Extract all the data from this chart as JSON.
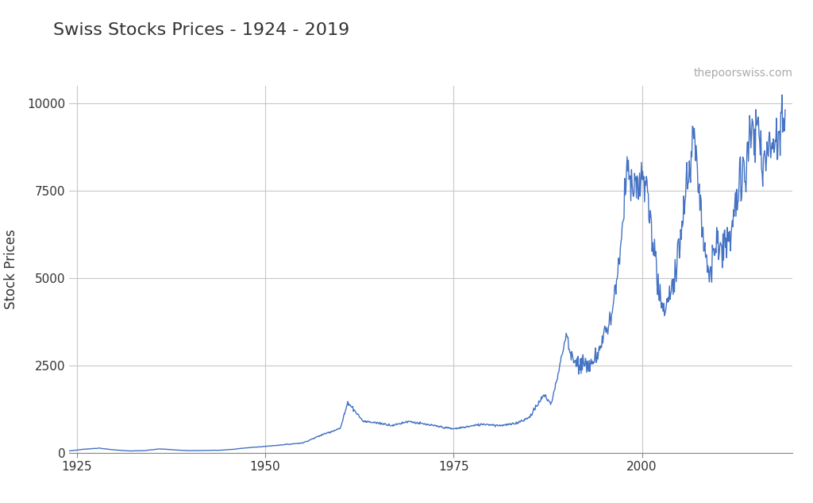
{
  "title": "Swiss Stocks Prices - 1924 - 2019",
  "watermark": "thepoorswiss.com",
  "ylabel": "Stock Prices",
  "xlabel": "",
  "line_color": "#4472C4",
  "line_width": 1.0,
  "background_color": "#ffffff",
  "grid_color": "#c8c8c8",
  "xlim": [
    1924,
    2020
  ],
  "ylim": [
    0,
    10500
  ],
  "yticks": [
    0,
    2500,
    5000,
    7500,
    10000
  ],
  "xticks": [
    1925,
    1950,
    1975,
    2000
  ],
  "title_fontsize": 16,
  "ylabel_fontsize": 12,
  "tick_fontsize": 11,
  "key_years": [
    1924,
    1926,
    1928,
    1930,
    1932,
    1934,
    1936,
    1938,
    1940,
    1942,
    1944,
    1946,
    1947,
    1950,
    1952,
    1955,
    1958,
    1960,
    1961,
    1963,
    1965,
    1967,
    1969,
    1971,
    1973,
    1975,
    1977,
    1979,
    1981,
    1983,
    1985,
    1987,
    1988,
    1990,
    1991,
    1993,
    1994,
    1996,
    1997,
    1998,
    1999,
    2000,
    2001,
    2002,
    2003,
    2004,
    2005,
    2006,
    2007,
    2008,
    2009,
    2010,
    2011,
    2012,
    2013,
    2015,
    2016,
    2017,
    2018,
    2019
  ],
  "key_values": [
    50,
    100,
    130,
    80,
    50,
    60,
    110,
    80,
    60,
    65,
    70,
    100,
    130,
    180,
    220,
    280,
    550,
    700,
    1450,
    900,
    850,
    780,
    900,
    820,
    750,
    680,
    750,
    820,
    780,
    820,
    1000,
    1650,
    1400,
    3400,
    2600,
    2500,
    2700,
    4000,
    5300,
    8100,
    7400,
    8000,
    7100,
    4900,
    3900,
    4800,
    5800,
    7600,
    9300,
    6400,
    5050,
    6200,
    5800,
    6400,
    7800,
    9300,
    8100,
    8900,
    8700,
    9800
  ]
}
